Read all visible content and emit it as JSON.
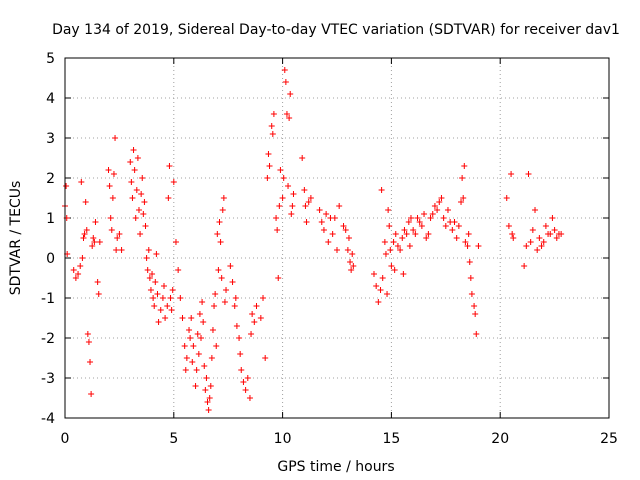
{
  "chart_data": {
    "type": "scatter",
    "title": "Day 134 of 2019, Sidereal Day-to-day VTEC variation (SDTVAR) for receiver dav1",
    "xlabel": "GPS time / hours",
    "ylabel": "SDTVAR / TECUs",
    "xlim": [
      0,
      25
    ],
    "ylim": [
      -4,
      5
    ],
    "xticks": [
      0,
      5,
      10,
      15,
      20,
      25
    ],
    "yticks": [
      -4,
      -3,
      -2,
      -1,
      0,
      1,
      2,
      3,
      4,
      5
    ],
    "grid": true,
    "marker": "+",
    "color": "#ff0000",
    "series": [
      {
        "name": "SDTVAR",
        "points": [
          [
            0.0,
            1.3
          ],
          [
            0.05,
            1.8
          ],
          [
            0.08,
            1.0
          ],
          [
            0.1,
            0.1
          ],
          [
            0.4,
            -0.3
          ],
          [
            0.5,
            -0.5
          ],
          [
            0.6,
            -0.4
          ],
          [
            0.7,
            -0.2
          ],
          [
            0.75,
            1.9
          ],
          [
            0.8,
            0.0
          ],
          [
            0.85,
            0.5
          ],
          [
            0.9,
            0.6
          ],
          [
            0.95,
            1.4
          ],
          [
            1.0,
            0.7
          ],
          [
            1.05,
            -1.9
          ],
          [
            1.1,
            -2.1
          ],
          [
            1.15,
            -2.6
          ],
          [
            1.2,
            -3.4
          ],
          [
            1.25,
            0.3
          ],
          [
            1.3,
            0.5
          ],
          [
            1.35,
            0.4
          ],
          [
            1.4,
            0.9
          ],
          [
            1.5,
            -0.6
          ],
          [
            1.55,
            -0.9
          ],
          [
            1.6,
            0.4
          ],
          [
            2.0,
            2.2
          ],
          [
            2.05,
            1.8
          ],
          [
            2.1,
            1.0
          ],
          [
            2.15,
            0.7
          ],
          [
            2.2,
            1.5
          ],
          [
            2.25,
            2.1
          ],
          [
            2.3,
            3.0
          ],
          [
            2.35,
            0.2
          ],
          [
            2.4,
            0.5
          ],
          [
            2.5,
            0.6
          ],
          [
            2.6,
            0.2
          ],
          [
            3.0,
            2.4
          ],
          [
            3.05,
            1.9
          ],
          [
            3.1,
            1.5
          ],
          [
            3.15,
            2.7
          ],
          [
            3.2,
            2.2
          ],
          [
            3.25,
            1.0
          ],
          [
            3.3,
            1.7
          ],
          [
            3.35,
            2.5
          ],
          [
            3.4,
            1.2
          ],
          [
            3.45,
            0.6
          ],
          [
            3.5,
            1.6
          ],
          [
            3.55,
            2.0
          ],
          [
            3.6,
            1.1
          ],
          [
            3.65,
            1.4
          ],
          [
            3.7,
            0.8
          ],
          [
            3.75,
            0.0
          ],
          [
            3.8,
            -0.3
          ],
          [
            3.85,
            0.2
          ],
          [
            3.9,
            -0.5
          ],
          [
            3.95,
            -0.8
          ],
          [
            4.0,
            -0.4
          ],
          [
            4.05,
            -1.0
          ],
          [
            4.1,
            -1.2
          ],
          [
            4.15,
            -0.6
          ],
          [
            4.2,
            0.1
          ],
          [
            4.25,
            -0.9
          ],
          [
            4.3,
            -1.6
          ],
          [
            4.4,
            -1.3
          ],
          [
            4.5,
            -1.0
          ],
          [
            4.55,
            -0.7
          ],
          [
            4.6,
            -1.5
          ],
          [
            4.7,
            -1.2
          ],
          [
            4.75,
            1.5
          ],
          [
            4.8,
            2.3
          ],
          [
            4.85,
            -1.0
          ],
          [
            4.9,
            -1.3
          ],
          [
            4.95,
            -0.8
          ],
          [
            5.0,
            1.9
          ],
          [
            5.1,
            0.4
          ],
          [
            5.2,
            -0.3
          ],
          [
            5.3,
            -1.0
          ],
          [
            5.4,
            -1.5
          ],
          [
            5.5,
            -2.2
          ],
          [
            5.55,
            -2.8
          ],
          [
            5.6,
            -2.5
          ],
          [
            5.7,
            -1.8
          ],
          [
            5.75,
            -2.0
          ],
          [
            5.8,
            -1.5
          ],
          [
            5.85,
            -2.6
          ],
          [
            5.9,
            -2.2
          ],
          [
            6.0,
            -3.2
          ],
          [
            6.05,
            -2.8
          ],
          [
            6.1,
            -1.9
          ],
          [
            6.15,
            -2.4
          ],
          [
            6.2,
            -1.4
          ],
          [
            6.25,
            -2.0
          ],
          [
            6.3,
            -1.1
          ],
          [
            6.35,
            -1.6
          ],
          [
            6.4,
            -2.7
          ],
          [
            6.45,
            -3.3
          ],
          [
            6.5,
            -3.0
          ],
          [
            6.55,
            -3.6
          ],
          [
            6.6,
            -3.8
          ],
          [
            6.65,
            -3.5
          ],
          [
            6.7,
            -3.2
          ],
          [
            6.75,
            -2.5
          ],
          [
            6.8,
            -1.8
          ],
          [
            6.85,
            -1.2
          ],
          [
            6.9,
            -0.9
          ],
          [
            6.95,
            -2.2
          ],
          [
            7.0,
            0.6
          ],
          [
            7.05,
            -0.3
          ],
          [
            7.1,
            0.9
          ],
          [
            7.15,
            0.4
          ],
          [
            7.2,
            -0.5
          ],
          [
            7.25,
            1.2
          ],
          [
            7.3,
            1.5
          ],
          [
            7.35,
            -1.1
          ],
          [
            7.4,
            -0.8
          ],
          [
            7.6,
            -0.2
          ],
          [
            7.7,
            -0.6
          ],
          [
            7.8,
            -1.2
          ],
          [
            7.85,
            -1.0
          ],
          [
            7.9,
            -1.7
          ],
          [
            8.0,
            -2.0
          ],
          [
            8.05,
            -2.4
          ],
          [
            8.1,
            -2.8
          ],
          [
            8.2,
            -3.1
          ],
          [
            8.3,
            -3.3
          ],
          [
            8.4,
            -3.0
          ],
          [
            8.5,
            -3.5
          ],
          [
            8.55,
            -1.9
          ],
          [
            8.6,
            -1.4
          ],
          [
            8.7,
            -1.6
          ],
          [
            8.8,
            -1.2
          ],
          [
            9.0,
            -1.5
          ],
          [
            9.1,
            -1.0
          ],
          [
            9.2,
            -2.5
          ],
          [
            9.3,
            2.0
          ],
          [
            9.35,
            2.6
          ],
          [
            9.4,
            2.3
          ],
          [
            9.5,
            3.3
          ],
          [
            9.55,
            3.1
          ],
          [
            9.6,
            3.6
          ],
          [
            9.7,
            1.0
          ],
          [
            9.75,
            0.7
          ],
          [
            9.8,
            -0.5
          ],
          [
            9.85,
            1.3
          ],
          [
            9.9,
            2.2
          ],
          [
            10.0,
            1.5
          ],
          [
            10.05,
            2.0
          ],
          [
            10.1,
            4.7
          ],
          [
            10.15,
            4.4
          ],
          [
            10.2,
            3.6
          ],
          [
            10.25,
            1.8
          ],
          [
            10.3,
            3.5
          ],
          [
            10.35,
            4.1
          ],
          [
            10.4,
            1.1
          ],
          [
            10.45,
            1.3
          ],
          [
            10.5,
            1.6
          ],
          [
            10.9,
            2.5
          ],
          [
            11.0,
            1.7
          ],
          [
            11.05,
            1.3
          ],
          [
            11.1,
            0.9
          ],
          [
            11.2,
            1.4
          ],
          [
            11.3,
            1.5
          ],
          [
            11.7,
            1.2
          ],
          [
            11.8,
            0.9
          ],
          [
            11.9,
            0.7
          ],
          [
            12.0,
            1.1
          ],
          [
            12.1,
            0.4
          ],
          [
            12.2,
            1.0
          ],
          [
            12.3,
            0.6
          ],
          [
            12.4,
            1.0
          ],
          [
            12.5,
            0.2
          ],
          [
            12.6,
            1.3
          ],
          [
            12.8,
            0.8
          ],
          [
            12.9,
            0.7
          ],
          [
            13.0,
            0.2
          ],
          [
            13.05,
            0.5
          ],
          [
            13.1,
            -0.1
          ],
          [
            13.15,
            -0.3
          ],
          [
            13.2,
            0.1
          ],
          [
            13.25,
            -0.2
          ],
          [
            14.2,
            -0.4
          ],
          [
            14.3,
            -0.7
          ],
          [
            14.4,
            -1.1
          ],
          [
            14.5,
            -0.8
          ],
          [
            14.55,
            1.7
          ],
          [
            14.6,
            -0.5
          ],
          [
            14.7,
            0.4
          ],
          [
            14.75,
            0.1
          ],
          [
            14.8,
            -0.9
          ],
          [
            14.85,
            1.2
          ],
          [
            14.9,
            0.8
          ],
          [
            14.95,
            0.2
          ],
          [
            15.0,
            -0.2
          ],
          [
            15.1,
            0.4
          ],
          [
            15.15,
            -0.3
          ],
          [
            15.2,
            0.6
          ],
          [
            15.3,
            0.3
          ],
          [
            15.4,
            0.2
          ],
          [
            15.5,
            0.5
          ],
          [
            15.55,
            -0.4
          ],
          [
            15.6,
            0.7
          ],
          [
            15.7,
            0.6
          ],
          [
            15.8,
            0.9
          ],
          [
            15.85,
            0.3
          ],
          [
            15.9,
            1.0
          ],
          [
            16.0,
            0.7
          ],
          [
            16.1,
            0.6
          ],
          [
            16.2,
            1.0
          ],
          [
            16.3,
            0.9
          ],
          [
            16.4,
            0.8
          ],
          [
            16.5,
            1.1
          ],
          [
            16.6,
            0.5
          ],
          [
            16.7,
            0.6
          ],
          [
            16.8,
            1.0
          ],
          [
            16.9,
            1.1
          ],
          [
            17.0,
            1.3
          ],
          [
            17.1,
            1.2
          ],
          [
            17.2,
            1.4
          ],
          [
            17.3,
            1.5
          ],
          [
            17.4,
            1.0
          ],
          [
            17.5,
            0.8
          ],
          [
            17.6,
            1.2
          ],
          [
            17.7,
            0.9
          ],
          [
            17.8,
            0.7
          ],
          [
            17.9,
            0.9
          ],
          [
            18.0,
            0.5
          ],
          [
            18.1,
            0.8
          ],
          [
            18.2,
            1.4
          ],
          [
            18.25,
            2.0
          ],
          [
            18.3,
            1.5
          ],
          [
            18.35,
            2.3
          ],
          [
            18.4,
            0.4
          ],
          [
            18.5,
            0.3
          ],
          [
            18.55,
            0.6
          ],
          [
            18.6,
            -0.1
          ],
          [
            18.65,
            -0.5
          ],
          [
            18.7,
            -0.9
          ],
          [
            18.8,
            -1.2
          ],
          [
            18.85,
            -1.4
          ],
          [
            18.9,
            -1.9
          ],
          [
            19.0,
            0.3
          ],
          [
            20.3,
            1.5
          ],
          [
            20.4,
            0.8
          ],
          [
            20.5,
            2.1
          ],
          [
            20.55,
            0.6
          ],
          [
            20.6,
            0.5
          ],
          [
            21.1,
            -0.2
          ],
          [
            21.2,
            0.3
          ],
          [
            21.3,
            2.1
          ],
          [
            21.4,
            0.4
          ],
          [
            21.5,
            0.7
          ],
          [
            21.6,
            1.2
          ],
          [
            21.7,
            0.2
          ],
          [
            21.8,
            0.5
          ],
          [
            21.9,
            0.3
          ],
          [
            22.0,
            0.4
          ],
          [
            22.1,
            0.8
          ],
          [
            22.2,
            0.6
          ],
          [
            22.3,
            0.6
          ],
          [
            22.4,
            1.0
          ],
          [
            22.5,
            0.7
          ],
          [
            22.6,
            0.5
          ],
          [
            22.7,
            0.6
          ],
          [
            22.8,
            0.6
          ]
        ]
      }
    ]
  }
}
